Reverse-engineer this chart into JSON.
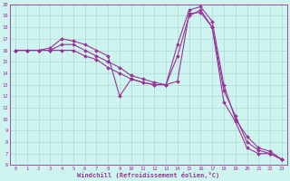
{
  "xlabel": "Windchill (Refroidissement éolien,°C)",
  "bg_color": "#cdf4ef",
  "line_color": "#993399",
  "grid_color": "#b0d8d4",
  "ylim": [
    6,
    20
  ],
  "xlim": [
    -0.5,
    23.5
  ],
  "yticks": [
    6,
    7,
    8,
    9,
    10,
    11,
    12,
    13,
    14,
    15,
    16,
    17,
    18,
    19,
    20
  ],
  "xticks": [
    0,
    1,
    2,
    3,
    4,
    5,
    6,
    7,
    8,
    9,
    10,
    11,
    12,
    13,
    14,
    15,
    16,
    17,
    18,
    19,
    20,
    21,
    22,
    23
  ],
  "lines": [
    [
      16.0,
      16.0,
      16.0,
      16.0,
      16.0,
      16.0,
      15.5,
      15.2,
      14.5,
      14.0,
      13.5,
      13.2,
      13.0,
      13.0,
      15.5,
      19.0,
      19.5,
      18.0,
      11.5,
      9.8,
      7.5,
      7.0,
      7.0,
      6.5
    ],
    [
      16.0,
      16.0,
      16.0,
      16.0,
      16.5,
      16.5,
      16.0,
      15.5,
      15.0,
      14.5,
      13.8,
      13.5,
      13.2,
      13.0,
      16.5,
      19.5,
      19.8,
      18.5,
      13.0,
      10.0,
      8.5,
      7.5,
      7.2,
      6.5
    ],
    [
      16.0,
      16.0,
      16.0,
      16.2,
      17.0,
      16.8,
      16.5,
      16.0,
      15.5,
      12.0,
      13.5,
      13.2,
      13.0,
      13.0,
      13.3,
      19.2,
      19.3,
      18.0,
      12.5,
      10.3,
      8.0,
      7.3,
      7.0,
      6.5
    ]
  ]
}
